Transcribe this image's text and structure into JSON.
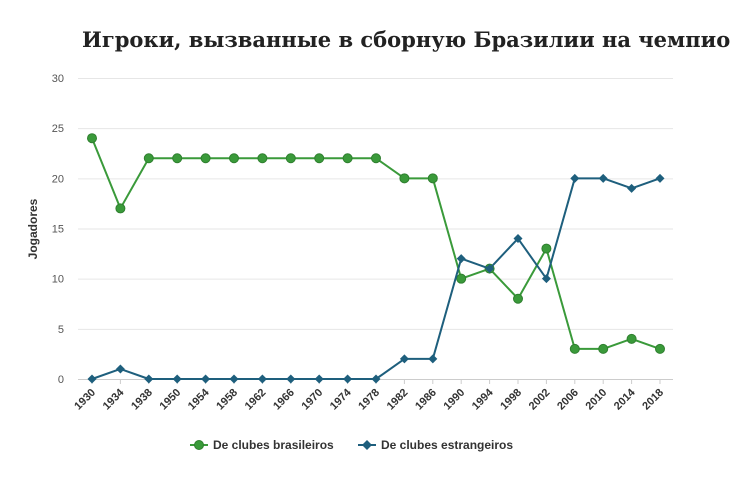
{
  "chart_data": {
    "type": "line",
    "title": "Игроки, вызванные в сборную Бразилии на чемпионаты мира",
    "ylabel": "Jogadores",
    "xlabel": "",
    "ylim": [
      0,
      30
    ],
    "yticks": [
      "0",
      "5",
      "10",
      "15",
      "20",
      "25",
      "30"
    ],
    "grid": true,
    "legend_position": "bottom-center",
    "categories": [
      "1930",
      "1934",
      "1938",
      "1950",
      "1954",
      "1958",
      "1962",
      "1966",
      "1970",
      "1974",
      "1978",
      "1982",
      "1986",
      "1990",
      "1994",
      "1998",
      "2002",
      "2006",
      "2010",
      "2014",
      "2018"
    ],
    "series": [
      {
        "name": "De clubes brasileiros",
        "color": "#3a9a3a",
        "marker": "circle",
        "values": [
          24,
          17,
          22,
          22,
          22,
          22,
          22,
          22,
          22,
          22,
          22,
          20,
          20,
          10,
          11,
          8,
          13,
          3,
          3,
          4,
          3
        ]
      },
      {
        "name": "De clubes estrangeiros",
        "color": "#1e5f7d",
        "marker": "diamond",
        "values": [
          0,
          1,
          0,
          0,
          0,
          0,
          0,
          0,
          0,
          0,
          0,
          2,
          2,
          12,
          11,
          14,
          10,
          20,
          20,
          19,
          20
        ]
      }
    ]
  }
}
